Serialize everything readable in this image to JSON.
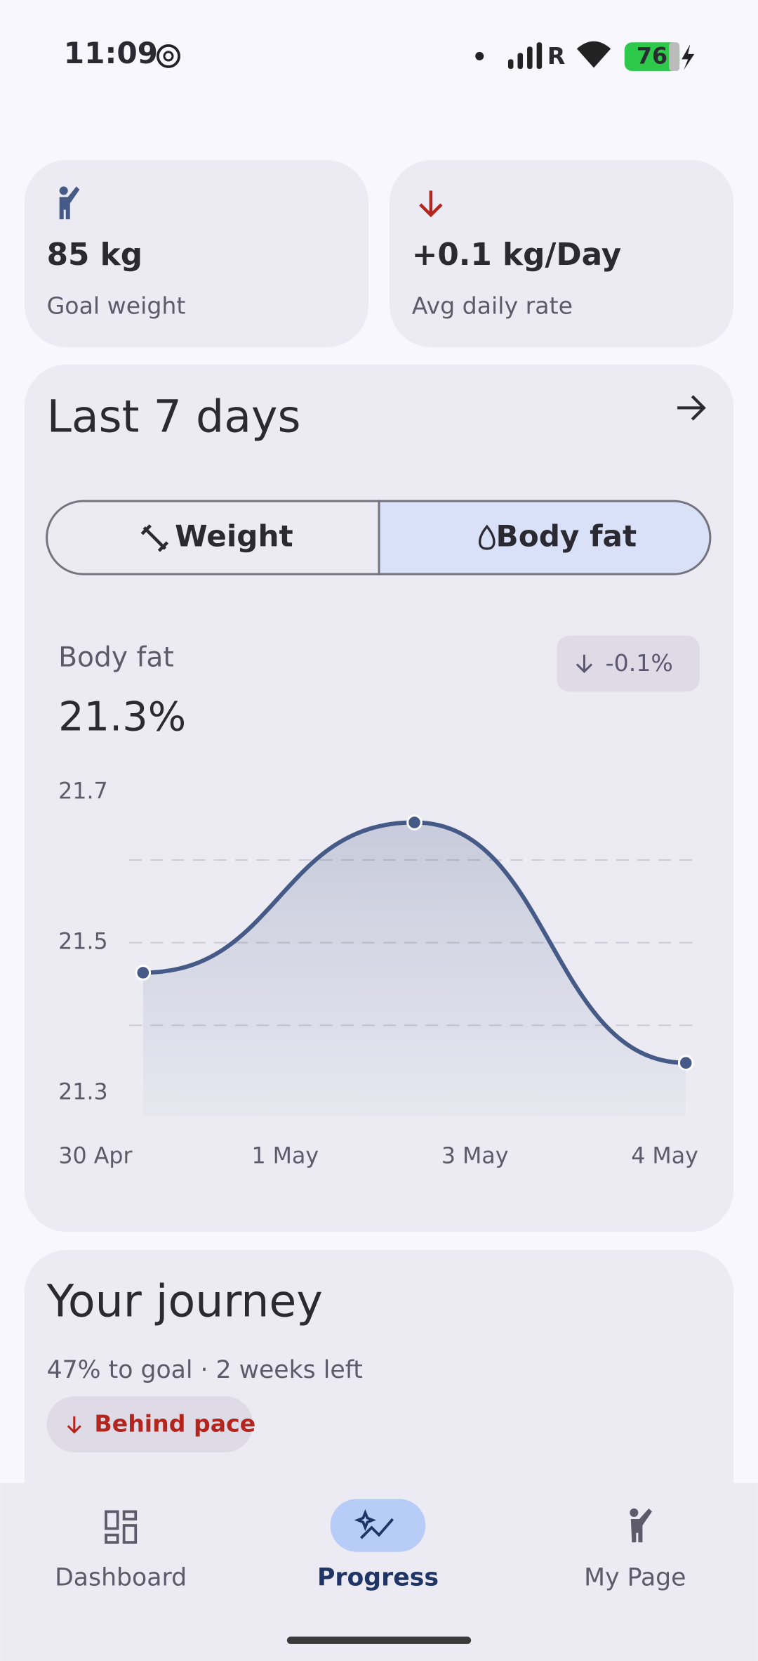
{
  "status_bar": {
    "time": "11:09",
    "battery": "76"
  },
  "stats": [
    {
      "value": "85 kg",
      "label": "Goal weight"
    },
    {
      "value": "+0.1 kg/Day",
      "label": "Avg daily rate"
    }
  ],
  "progress_card": {
    "title": "Last 7 days",
    "tabs": [
      "Weight",
      "Body fat"
    ],
    "selected_tab": 1
  },
  "chart_data": {
    "type": "line",
    "title": "Body fat",
    "current": "21.3%",
    "change": "-0.1%",
    "categories": [
      "30 Apr",
      null,
      "4 May"
    ],
    "values": [
      21.46,
      21.66,
      21.34
    ],
    "color": "#455a86",
    "x_labels": [
      "30 Apr",
      "1 May",
      "3 May",
      "4 May"
    ],
    "ylim": [
      21.27,
      21.7
    ],
    "yticks": [
      21.3,
      21.5,
      21.7
    ],
    "grid_lines": [
      21.39,
      21.5,
      21.61
    ]
  },
  "journey": {
    "title": "Your journey",
    "summary": "47% to goal · 2 weeks left",
    "status": "Behind pace"
  },
  "nav": [
    {
      "label": "Dashboard"
    },
    {
      "label": "Progress",
      "active": true
    },
    {
      "label": "My Page"
    }
  ]
}
